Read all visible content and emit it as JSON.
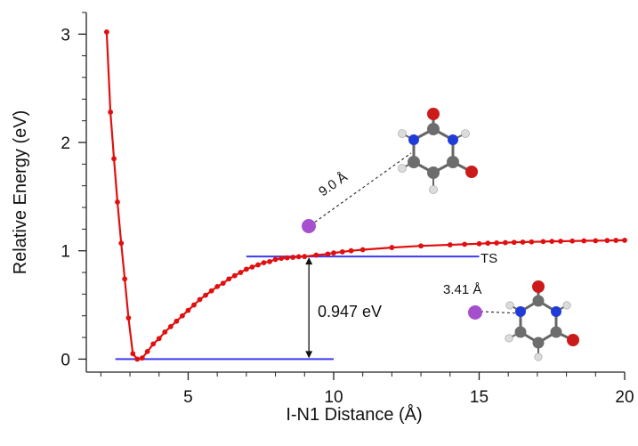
{
  "chart_data": {
    "type": "line",
    "xlabel": "I-N1 Distance (Å)",
    "ylabel": "Relative Energy (eV)",
    "xlim": [
      1.5,
      20
    ],
    "ylim": [
      -0.12,
      3.2
    ],
    "xticks": [
      5,
      10,
      15,
      20
    ],
    "yticks": [
      0,
      1,
      2,
      3
    ],
    "x_minor_step": 1,
    "y_minor_step": 0.2,
    "grid": false,
    "line_color": "#e01010",
    "marker_color": "#e01010",
    "reference_color": "#3b3bf0",
    "series": [
      {
        "x": [
          2.2,
          2.33,
          2.45,
          2.57,
          2.7,
          2.82,
          2.95,
          3.1,
          3.25,
          3.42,
          3.6,
          3.8,
          4.0,
          4.2,
          4.4,
          4.6,
          4.8,
          5.0,
          5.2,
          5.4,
          5.6,
          5.8,
          6.0,
          6.2,
          6.4,
          6.6,
          6.8,
          7.0,
          7.2,
          7.4,
          7.6,
          7.8,
          8.0,
          8.2,
          8.4,
          8.6,
          8.8,
          9.0,
          9.4,
          9.8,
          10.0,
          10.3,
          10.6,
          11.0,
          12.0,
          13.0,
          14.0,
          14.5,
          15.0,
          15.3,
          15.6,
          15.9,
          16.2,
          16.5,
          16.8,
          17.2,
          17.5,
          17.8,
          18.2,
          18.6,
          19.0,
          19.4,
          19.7,
          20.0
        ],
        "y": [
          3.02,
          2.28,
          1.85,
          1.45,
          1.07,
          0.74,
          0.38,
          0.05,
          0.0,
          0.01,
          0.07,
          0.14,
          0.19,
          0.25,
          0.3,
          0.35,
          0.4,
          0.45,
          0.5,
          0.55,
          0.59,
          0.63,
          0.67,
          0.7,
          0.74,
          0.77,
          0.8,
          0.83,
          0.85,
          0.87,
          0.89,
          0.9,
          0.92,
          0.93,
          0.935,
          0.94,
          0.945,
          0.947,
          0.96,
          0.97,
          0.98,
          0.99,
          1.0,
          1.01,
          1.03,
          1.045,
          1.055,
          1.06,
          1.065,
          1.07,
          1.072,
          1.075,
          1.078,
          1.08,
          1.082,
          1.085,
          1.087,
          1.088,
          1.09,
          1.092,
          1.093,
          1.095,
          1.096,
          1.097
        ]
      }
    ],
    "reference_lines": [
      {
        "y": 0.0,
        "x_start": 2.5,
        "x_end": 10.0
      },
      {
        "y": 0.947,
        "x_start": 7.0,
        "x_end": 15.0
      }
    ],
    "energy_gap": {
      "x": 9.15,
      "y_from": 0.0,
      "y_to": 0.947,
      "label": "0.947 eV"
    },
    "ts_label": "TS",
    "structures": [
      {
        "bond_label": "9.0 Å",
        "iodine_color": "#a54fcf"
      },
      {
        "bond_label": "3.41 Å",
        "iodine_color": "#a54fcf"
      }
    ]
  }
}
